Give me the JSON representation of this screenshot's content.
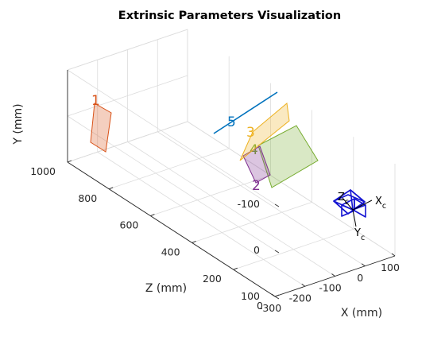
{
  "chart_data": {
    "type": "3d-plane",
    "title": "Extrinsic Parameters Visualization",
    "xlabel": "X (mm)",
    "ylabel": "Y (mm)",
    "zlabel": "Z (mm)",
    "xlim": [
      -300,
      100
    ],
    "ylim": [
      -100,
      100
    ],
    "zlim": [
      0,
      1000
    ],
    "y_direction": "reversed",
    "x_ticks": [
      "-300",
      "-200",
      "-100",
      "0",
      "100"
    ],
    "y_ticks": [
      "-100",
      "0",
      "100"
    ],
    "z_ticks": [
      "0",
      "200",
      "400",
      "600",
      "800",
      "1000"
    ],
    "grid": true,
    "legend": "none",
    "boards": [
      {
        "label": "1",
        "color": "#D95319"
      },
      {
        "label": "2",
        "color": "#7E2F8E"
      },
      {
        "label": "3",
        "color": "#EDB120"
      },
      {
        "label": "4",
        "color": "#77AC30"
      },
      {
        "label": "5",
        "color": "#0072BD"
      }
    ],
    "camera": {
      "color": "#1414d2",
      "x_axis_label": "X",
      "x_axis_sub": "c",
      "y_axis_label": "Y",
      "y_axis_sub": "c",
      "z_axis_label": "Z",
      "z_axis_sub": "c"
    }
  }
}
